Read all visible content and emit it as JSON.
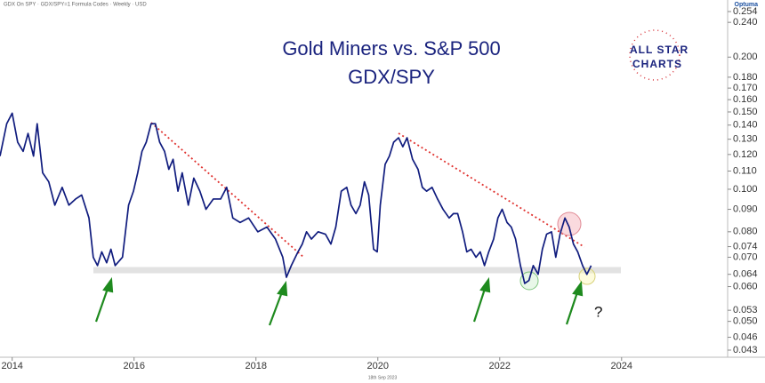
{
  "header": "GDX On SPY · GDX/SPY=1 Formula Codes · Weekly · USD",
  "brand": "Optuma",
  "logo": {
    "line1": "ALL STAR",
    "line2": "CHARTS"
  },
  "footer": "18th Sep 2023",
  "chart_data": {
    "type": "line",
    "title": "Gold Miners vs. S&P 500",
    "subtitle": "GDX/SPY",
    "annotation": "?",
    "log_scale": true,
    "grid": false,
    "color": "#101c7e",
    "xlim": [
      2013.8,
      2025.74
    ],
    "xticks": [
      2014,
      2016,
      2018,
      2020,
      2022,
      2024
    ],
    "ylim": [
      0.043,
      0.254
    ],
    "yticks": [
      0.254,
      {
        "value": 0.24,
        "label": "0.240"
      },
      {
        "value": 0.2,
        "label": "0.200"
      },
      {
        "value": 0.18,
        "label": "0.180"
      },
      {
        "value": 0.17,
        "label": "0.170"
      },
      {
        "value": 0.16,
        "label": "0.160"
      },
      {
        "value": 0.15,
        "label": "0.150"
      },
      {
        "value": 0.14,
        "label": "0.140"
      },
      {
        "value": 0.13,
        "label": "0.130"
      },
      {
        "value": 0.12,
        "label": "0.120"
      },
      {
        "value": 0.11,
        "label": "0.110"
      },
      {
        "value": 0.1,
        "label": "0.100"
      },
      {
        "value": 0.09,
        "label": "0.090"
      },
      {
        "value": 0.08,
        "label": "0.080"
      },
      0.074,
      {
        "value": 0.07,
        "label": "0.070"
      },
      0.064,
      {
        "value": 0.06,
        "label": "0.060"
      },
      0.053,
      {
        "value": 0.05,
        "label": "0.050"
      },
      0.046,
      0.043
    ],
    "x": [
      2013.8,
      2013.91,
      2014.0,
      2014.09,
      2014.18,
      2014.26,
      2014.35,
      2014.41,
      2014.5,
      2014.6,
      2014.7,
      2014.82,
      2014.93,
      2015.04,
      2015.14,
      2015.26,
      2015.33,
      2015.4,
      2015.47,
      2015.55,
      2015.62,
      2015.69,
      2015.81,
      2015.91,
      2015.99,
      2016.06,
      2016.13,
      2016.2,
      2016.28,
      2016.35,
      2016.42,
      2016.5,
      2016.57,
      2016.64,
      2016.72,
      2016.79,
      2016.89,
      2016.98,
      2017.08,
      2017.18,
      2017.3,
      2017.42,
      2017.52,
      2017.62,
      2017.74,
      2017.88,
      2018.03,
      2018.18,
      2018.32,
      2018.44,
      2018.5,
      2018.58,
      2018.69,
      2018.76,
      2018.83,
      2018.91,
      2019.02,
      2019.14,
      2019.23,
      2019.31,
      2019.4,
      2019.49,
      2019.56,
      2019.64,
      2019.71,
      2019.78,
      2019.85,
      2019.93,
      2019.99,
      2020.04,
      2020.12,
      2020.19,
      2020.26,
      2020.34,
      2020.41,
      2020.48,
      2020.57,
      2020.66,
      2020.73,
      2020.8,
      2020.89,
      2020.98,
      2021.07,
      2021.17,
      2021.24,
      2021.31,
      2021.39,
      2021.46,
      2021.53,
      2021.61,
      2021.68,
      2021.75,
      2021.82,
      2021.9,
      2021.97,
      2022.04,
      2022.12,
      2022.19,
      2022.26,
      2022.34,
      2022.41,
      2022.48,
      2022.55,
      2022.63,
      2022.7,
      2022.77,
      2022.85,
      2022.92,
      2022.99,
      2023.07,
      2023.14,
      2023.21,
      2023.28,
      2023.36,
      2023.43,
      2023.5
    ],
    "values": [
      0.119,
      0.141,
      0.149,
      0.128,
      0.122,
      0.134,
      0.119,
      0.141,
      0.109,
      0.104,
      0.092,
      0.101,
      0.092,
      0.095,
      0.097,
      0.086,
      0.07,
      0.067,
      0.072,
      0.068,
      0.073,
      0.067,
      0.07,
      0.092,
      0.099,
      0.109,
      0.122,
      0.128,
      0.141,
      0.141,
      0.128,
      0.122,
      0.111,
      0.117,
      0.099,
      0.109,
      0.092,
      0.106,
      0.099,
      0.09,
      0.095,
      0.095,
      0.101,
      0.086,
      0.084,
      0.086,
      0.08,
      0.082,
      0.077,
      0.07,
      0.063,
      0.067,
      0.072,
      0.075,
      0.08,
      0.077,
      0.08,
      0.079,
      0.075,
      0.082,
      0.099,
      0.101,
      0.092,
      0.088,
      0.092,
      0.104,
      0.097,
      0.073,
      0.072,
      0.092,
      0.114,
      0.119,
      0.128,
      0.131,
      0.125,
      0.131,
      0.117,
      0.111,
      0.101,
      0.099,
      0.101,
      0.095,
      0.09,
      0.086,
      0.088,
      0.088,
      0.08,
      0.072,
      0.073,
      0.07,
      0.072,
      0.067,
      0.072,
      0.077,
      0.086,
      0.09,
      0.084,
      0.082,
      0.077,
      0.067,
      0.061,
      0.062,
      0.067,
      0.064,
      0.073,
      0.079,
      0.08,
      0.07,
      0.079,
      0.086,
      0.082,
      0.075,
      0.072,
      0.067,
      0.064,
      0.067
    ]
  }
}
